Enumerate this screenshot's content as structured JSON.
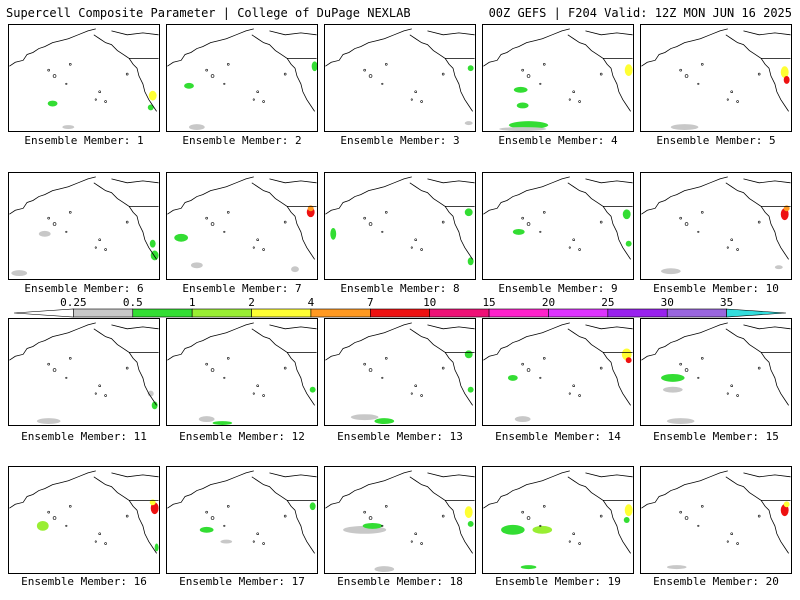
{
  "header": {
    "left_title": "Supercell Composite Parameter | College of DuPage NEXLAB",
    "right_title": "00Z GEFS | F204 Valid: 12Z MON JUN 16 2025"
  },
  "panels": [
    {
      "label": "Ensemble Member: 1"
    },
    {
      "label": "Ensemble Member: 2"
    },
    {
      "label": "Ensemble Member: 3"
    },
    {
      "label": "Ensemble Member: 4"
    },
    {
      "label": "Ensemble Member: 5"
    },
    {
      "label": "Ensemble Member: 6"
    },
    {
      "label": "Ensemble Member: 7"
    },
    {
      "label": "Ensemble Member: 8"
    },
    {
      "label": "Ensemble Member: 9"
    },
    {
      "label": "Ensemble Member: 10"
    },
    {
      "label": "Ensemble Member: 11"
    },
    {
      "label": "Ensemble Member: 12"
    },
    {
      "label": "Ensemble Member: 13"
    },
    {
      "label": "Ensemble Member: 14"
    },
    {
      "label": "Ensemble Member: 15"
    },
    {
      "label": "Ensemble Member: 16"
    },
    {
      "label": "Ensemble Member: 17"
    },
    {
      "label": "Ensemble Member: 18"
    },
    {
      "label": "Ensemble Member: 19"
    },
    {
      "label": "Ensemble Member: 20"
    }
  ],
  "colorbar": {
    "ticks": [
      "0.25",
      "0.5",
      "1",
      "2",
      "4",
      "7",
      "10",
      "15",
      "20",
      "25",
      "30",
      "35"
    ],
    "colors": [
      "#ffffff",
      "#c8c8c8",
      "#33dd33",
      "#99ee33",
      "#ffff33",
      "#ff9922",
      "#ee1111",
      "#ee1177",
      "#ff22cc",
      "#dd33ff",
      "#9922ee",
      "#9966dd",
      "#33dddd"
    ]
  }
}
